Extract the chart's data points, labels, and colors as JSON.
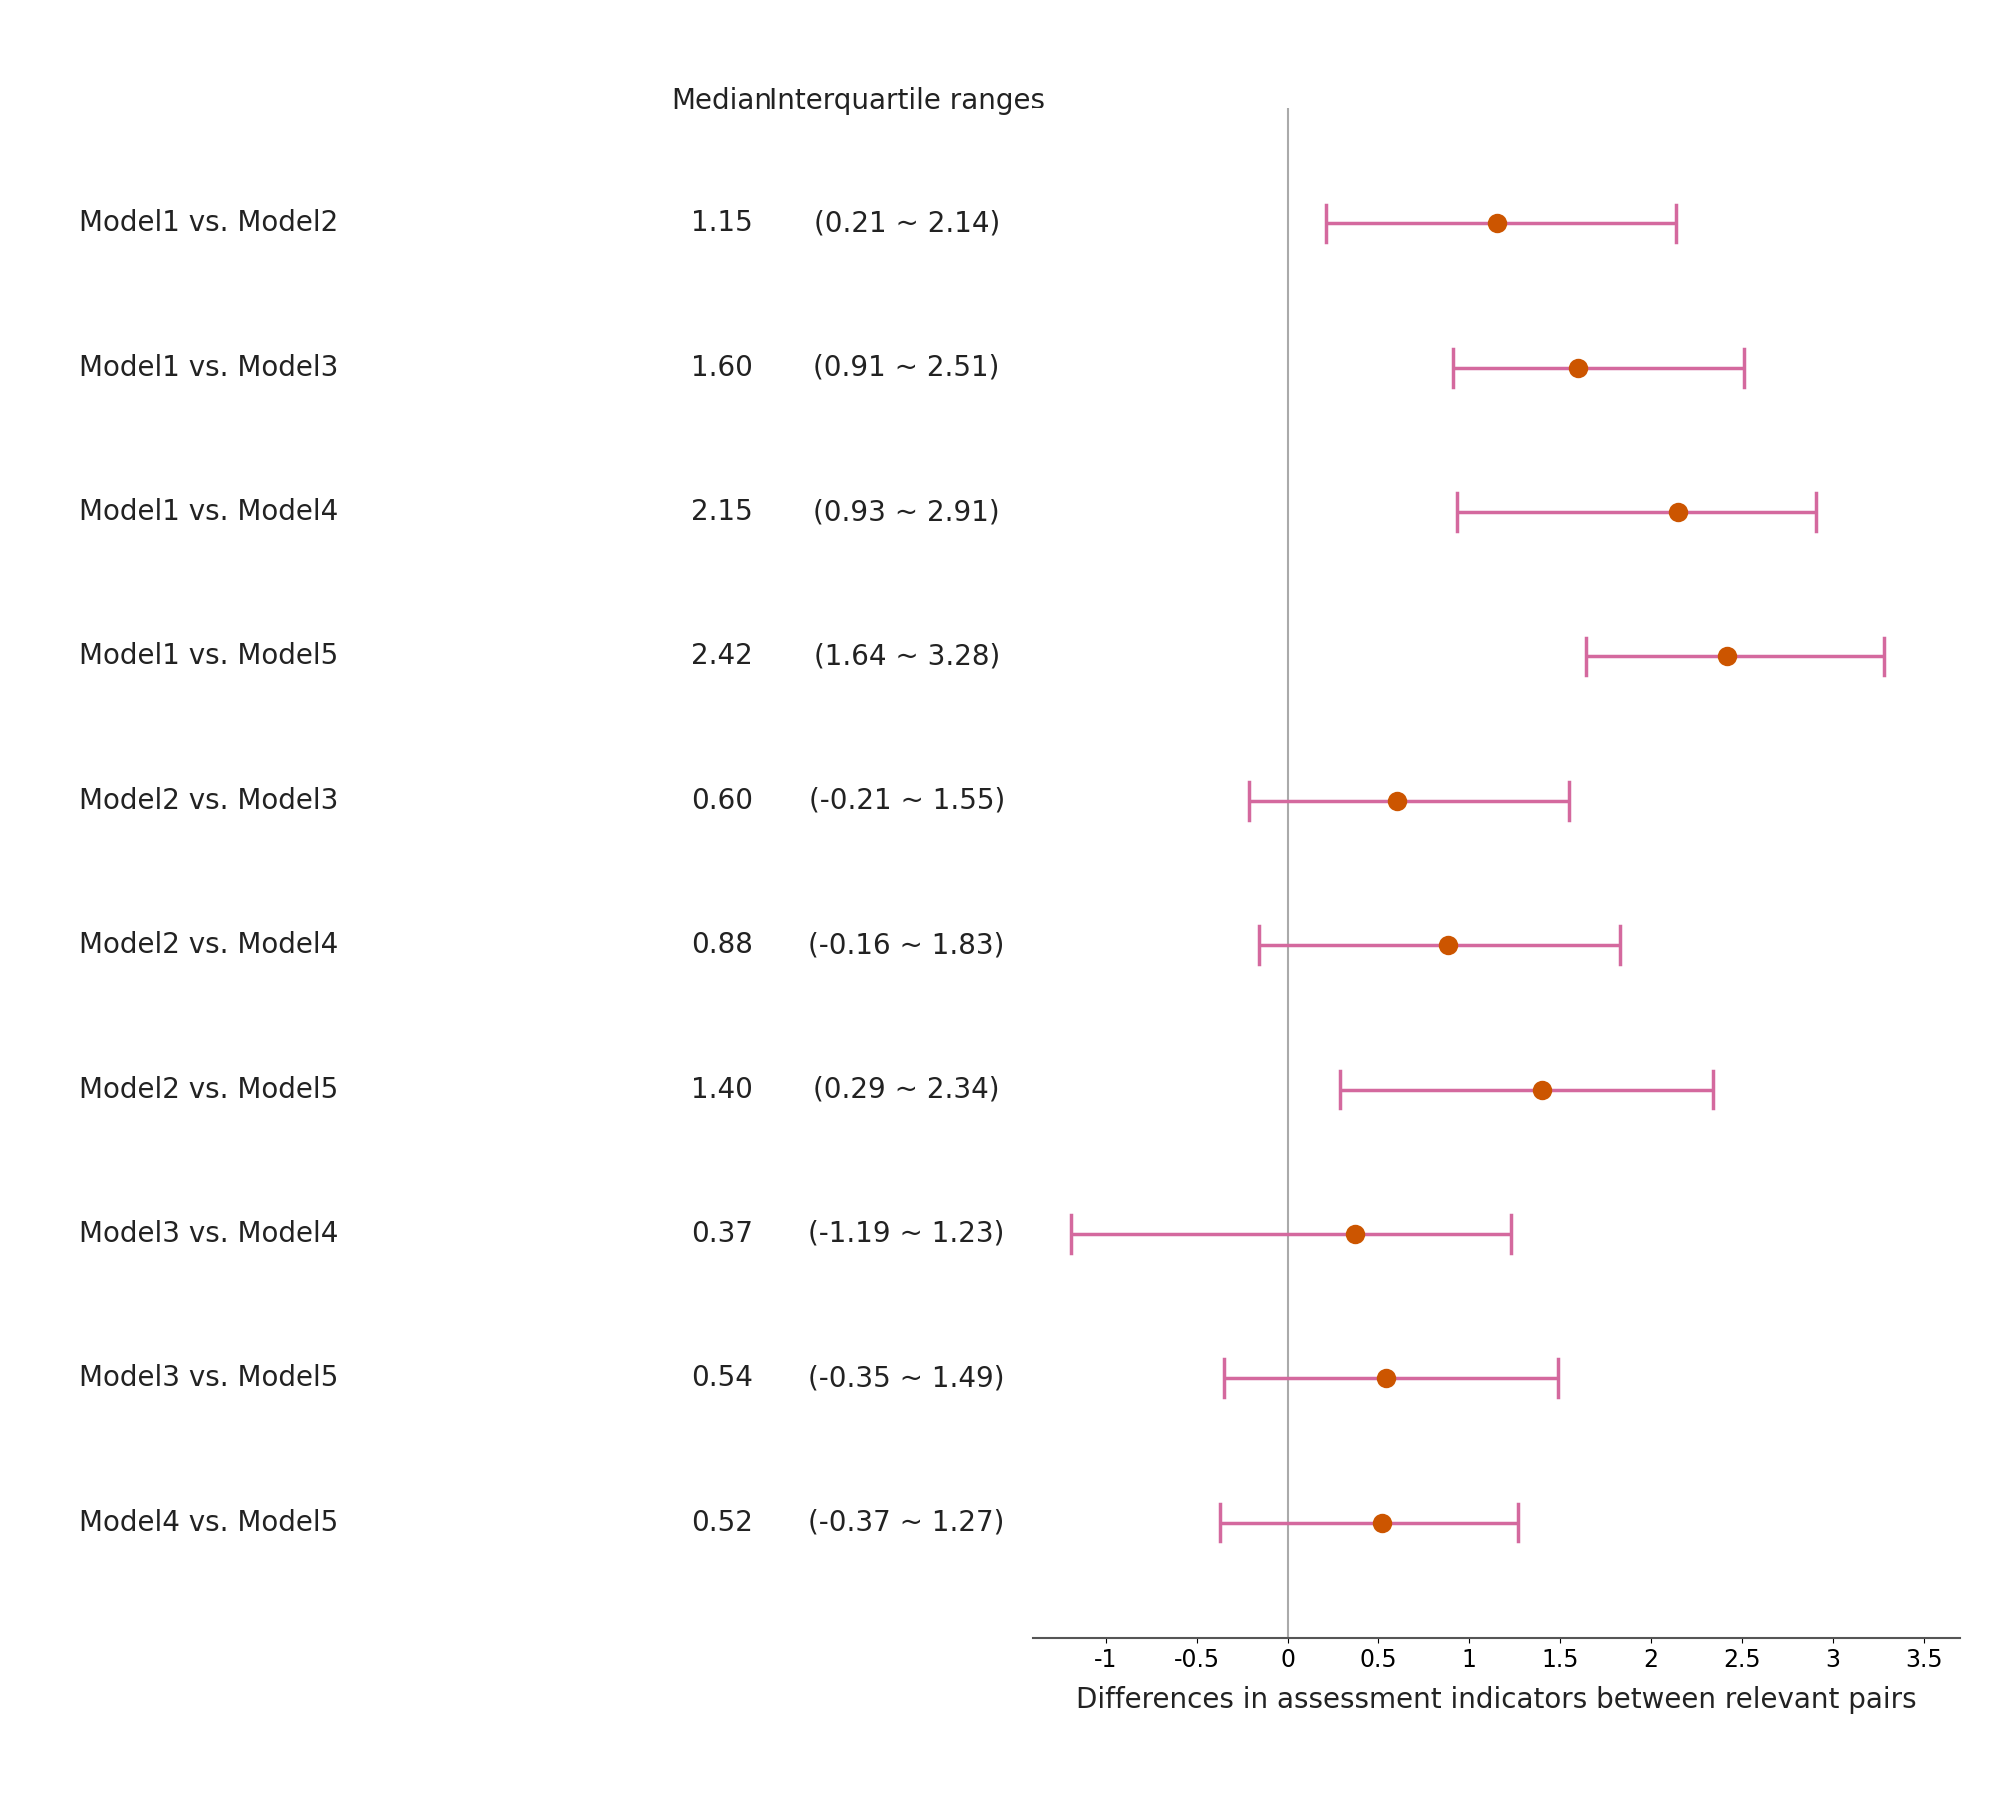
{
  "rows": [
    {
      "label": "Model1 vs. Model2",
      "median": 1.15,
      "iqr_text": "(0.21 ~ 2.14)",
      "ci_low": 0.21,
      "ci_high": 2.14
    },
    {
      "label": "Model1 vs. Model3",
      "median": 1.6,
      "iqr_text": "(0.91 ~ 2.51)",
      "ci_low": 0.91,
      "ci_high": 2.51
    },
    {
      "label": "Model1 vs. Model4",
      "median": 2.15,
      "iqr_text": "(0.93 ~ 2.91)",
      "ci_low": 0.93,
      "ci_high": 2.91
    },
    {
      "label": "Model1 vs. Model5",
      "median": 2.42,
      "iqr_text": "(1.64 ~ 3.28)",
      "ci_low": 1.64,
      "ci_high": 3.28
    },
    {
      "label": "Model2 vs. Model3",
      "median": 0.6,
      "iqr_text": "(-0.21 ~ 1.55)",
      "ci_low": -0.21,
      "ci_high": 1.55
    },
    {
      "label": "Model2 vs. Model4",
      "median": 0.88,
      "iqr_text": "(-0.16 ~ 1.83)",
      "ci_low": -0.16,
      "ci_high": 1.83
    },
    {
      "label": "Model2 vs. Model5",
      "median": 1.4,
      "iqr_text": "(0.29 ~ 2.34)",
      "ci_low": 0.29,
      "ci_high": 2.34
    },
    {
      "label": "Model3 vs. Model4",
      "median": 0.37,
      "iqr_text": "(-1.19 ~ 1.23)",
      "ci_low": -1.19,
      "ci_high": 1.23
    },
    {
      "label": "Model3 vs. Model5",
      "median": 0.54,
      "iqr_text": "(-0.35 ~ 1.49)",
      "ci_low": -0.35,
      "ci_high": 1.49
    },
    {
      "label": "Model4 vs. Model5",
      "median": 0.52,
      "iqr_text": "(-0.37 ~ 1.27)",
      "ci_low": -0.37,
      "ci_high": 1.27
    }
  ],
  "header_median": "Median",
  "header_iqr": "Interquartile ranges",
  "xlabel": "Differences in assessment indicators between relevant pairs",
  "xlim": [
    -1.4,
    3.7
  ],
  "xticks": [
    -1,
    -0.5,
    0,
    0.5,
    1,
    1.5,
    2,
    2.5,
    3,
    3.5
  ],
  "xtick_labels": [
    "-1",
    "-0.5",
    "0",
    "0.5",
    "1",
    "1.5",
    "2",
    "2.5",
    "3",
    "3.5"
  ],
  "vline_x": 0,
  "dot_color": "#cc5500",
  "line_color": "#d4699e",
  "vline_color": "#aaaaaa",
  "background_color": "#ffffff",
  "label_fontsize": 20,
  "header_fontsize": 20,
  "xlabel_fontsize": 20,
  "tick_fontsize": 17,
  "cap_size": 0.13
}
